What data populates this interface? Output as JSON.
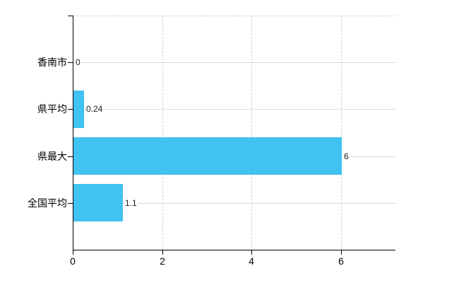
{
  "chart_data": {
    "type": "bar",
    "orientation": "horizontal",
    "title": "",
    "xlabel": "",
    "ylabel": "",
    "categories": [
      "香南市",
      "県平均",
      "県最大",
      "全国平均"
    ],
    "values": [
      0,
      0.24,
      6,
      1.1
    ],
    "value_labels": [
      "0",
      "0.24",
      "6",
      "1.1"
    ],
    "xticks": [
      0,
      2,
      4,
      6
    ],
    "xtick_labels": [
      "0",
      "2",
      "4",
      "6"
    ],
    "xlim": [
      0,
      7.22
    ],
    "grid": true,
    "legend": "none",
    "bar_color": "#41c2f0",
    "gridline_h_color": "#d5dbd5",
    "gridline_v_color": "#d3ccd6",
    "axis_color": "#000000",
    "label_color": "#000000",
    "value_label_color": "#1c1c1c"
  }
}
